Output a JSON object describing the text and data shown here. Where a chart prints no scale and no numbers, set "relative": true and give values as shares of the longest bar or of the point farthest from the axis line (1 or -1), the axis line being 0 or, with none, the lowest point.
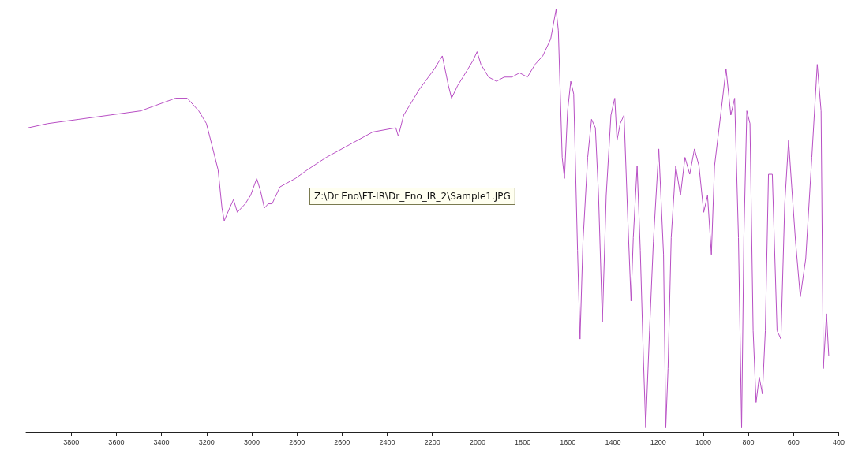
{
  "chart_data": {
    "type": "line",
    "relative": true,
    "xlim": [
      4000,
      400
    ],
    "xticks": [
      3800,
      3600,
      3400,
      3200,
      3000,
      2800,
      2600,
      2400,
      2200,
      2000,
      1800,
      1600,
      1400,
      1200,
      1000,
      800,
      600,
      400
    ],
    "grid": false,
    "marker": "none",
    "line_style": "solid",
    "annotations": [
      "Z:\\Dr Eno\\FT-IR\\Dr_Eno_IR_2\\Sample1.JPG"
    ],
    "series": [
      {
        "color": "#b84fc4",
        "x": [
          3990,
          3903,
          3766,
          3629,
          3492,
          3389,
          3338,
          3286,
          3235,
          3201,
          3177,
          3149,
          3132,
          3122,
          3098,
          3081,
          3064,
          3029,
          3005,
          2978,
          2961,
          2944,
          2927,
          2910,
          2875,
          2807,
          2755,
          2670,
          2567,
          2464,
          2362,
          2351,
          2327,
          2259,
          2190,
          2156,
          2129,
          2115,
          2088,
          2053,
          2019,
          2002,
          1985,
          1951,
          1916,
          1882,
          1848,
          1814,
          1779,
          1745,
          1711,
          1676,
          1652,
          1642,
          1625,
          1615,
          1601,
          1587,
          1574,
          1557,
          1546,
          1533,
          1512,
          1495,
          1478,
          1464,
          1447,
          1430,
          1409,
          1392,
          1382,
          1368,
          1351,
          1334,
          1320,
          1310,
          1293,
          1279,
          1265,
          1255,
          1238,
          1221,
          1197,
          1176,
          1166,
          1156,
          1142,
          1122,
          1101,
          1081,
          1060,
          1039,
          1019,
          998,
          981,
          964,
          950,
          923,
          899,
          878,
          861,
          844,
          830,
          820,
          807,
          793,
          779,
          766,
          752,
          738,
          725,
          711,
          694,
          673,
          656,
          639,
          622,
          608,
          591,
          570,
          546,
          519,
          495,
          478,
          468,
          454,
          444
        ],
        "values": [
          0.72,
          0.73,
          0.74,
          0.75,
          0.76,
          0.78,
          0.79,
          0.79,
          0.76,
          0.73,
          0.68,
          0.62,
          0.53,
          0.5,
          0.53,
          0.55,
          0.52,
          0.54,
          0.56,
          0.6,
          0.57,
          0.53,
          0.54,
          0.54,
          0.58,
          0.6,
          0.62,
          0.65,
          0.68,
          0.71,
          0.72,
          0.7,
          0.75,
          0.81,
          0.86,
          0.89,
          0.82,
          0.79,
          0.82,
          0.85,
          0.88,
          0.9,
          0.87,
          0.84,
          0.83,
          0.84,
          0.84,
          0.85,
          0.84,
          0.87,
          0.89,
          0.93,
          1.0,
          0.95,
          0.65,
          0.6,
          0.76,
          0.83,
          0.8,
          0.43,
          0.22,
          0.45,
          0.65,
          0.74,
          0.72,
          0.56,
          0.26,
          0.56,
          0.75,
          0.79,
          0.69,
          0.73,
          0.75,
          0.5,
          0.31,
          0.46,
          0.63,
          0.43,
          0.17,
          0.01,
          0.24,
          0.45,
          0.67,
          0.42,
          0.01,
          0.15,
          0.46,
          0.63,
          0.56,
          0.65,
          0.61,
          0.67,
          0.63,
          0.52,
          0.56,
          0.42,
          0.63,
          0.75,
          0.86,
          0.75,
          0.79,
          0.46,
          0.01,
          0.46,
          0.76,
          0.73,
          0.24,
          0.07,
          0.13,
          0.09,
          0.24,
          0.61,
          0.61,
          0.24,
          0.22,
          0.54,
          0.69,
          0.58,
          0.45,
          0.32,
          0.41,
          0.65,
          0.87,
          0.76,
          0.15,
          0.28,
          0.18
        ]
      }
    ]
  }
}
